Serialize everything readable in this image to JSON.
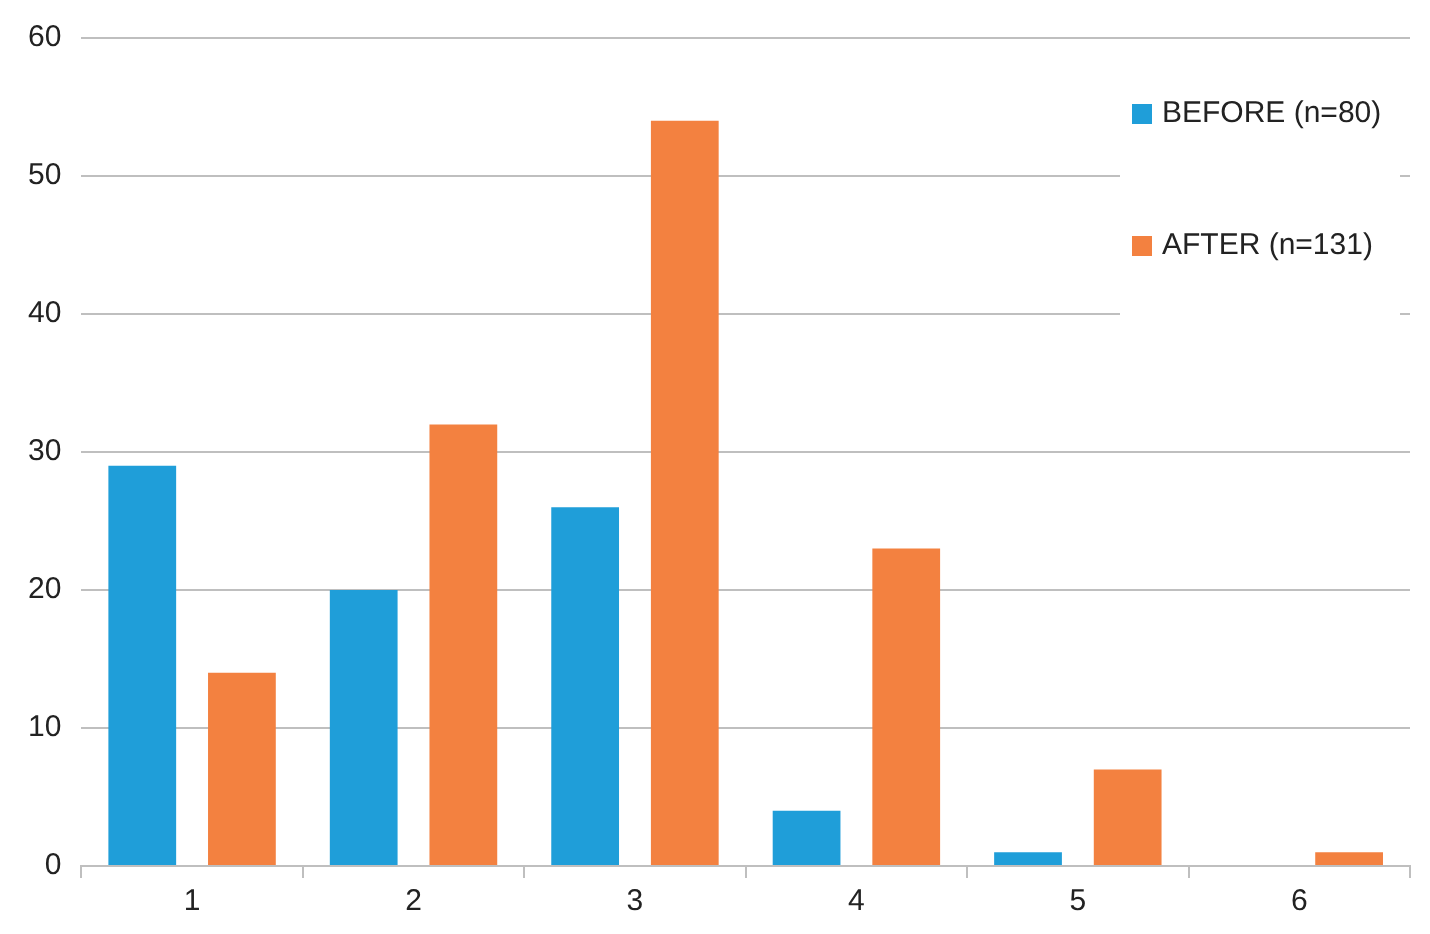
{
  "chart_data": {
    "type": "bar",
    "categories": [
      "1",
      "2",
      "3",
      "4",
      "5",
      "6"
    ],
    "series": [
      {
        "name": "BEFORE (n=80)",
        "color": "#1f9ed9",
        "values": [
          29,
          20,
          26,
          4,
          1,
          0
        ]
      },
      {
        "name": "AFTER (n=131)",
        "color": "#f38140",
        "values": [
          14,
          32,
          54,
          23,
          7,
          1
        ]
      }
    ],
    "ylim": [
      0,
      60
    ],
    "yticks": [
      0,
      10,
      20,
      30,
      40,
      50,
      60
    ],
    "grid": "y",
    "legend": "top right"
  }
}
